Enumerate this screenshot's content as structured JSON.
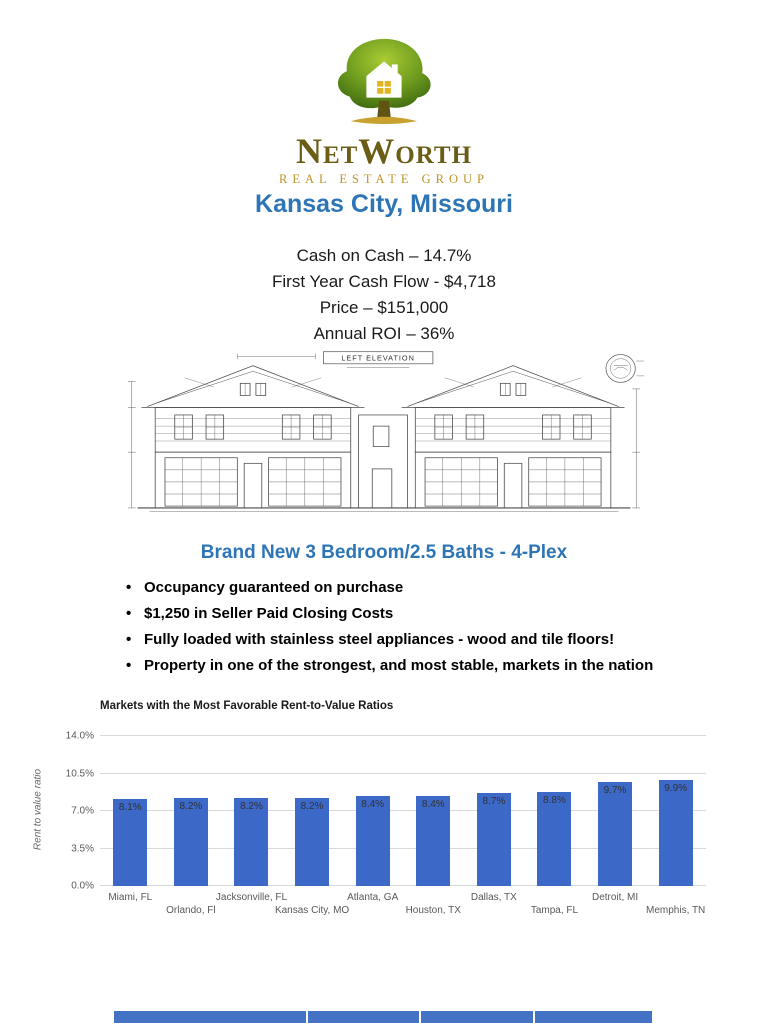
{
  "logo": {
    "brand": "NetWorth",
    "subtitle": "REAL ESTATE GROUP"
  },
  "title": "Kansas City, Missouri",
  "stats": [
    "Cash on Cash – 14.7%",
    "First Year Cash Flow - $4,718",
    "Price – $151,000",
    "Annual ROI – 36%"
  ],
  "drawing": {
    "label": "LEFT  ELEVATION"
  },
  "subheading": "Brand New 3 Bedroom/2.5 Baths - 4-Plex",
  "bullets": [
    "Occupancy guaranteed on purchase",
    "$1,250 in Seller Paid Closing Costs",
    "Fully loaded with stainless steel appliances - wood and tile floors!",
    "Property in one of the strongest, and most stable, markets in the nation"
  ],
  "colors": {
    "accent_blue": "#2e75b6",
    "table_blue": "#4472c4",
    "logo_gold": "#bc9427",
    "bar_blue": "#3c68c8"
  },
  "chart_data": {
    "type": "bar",
    "title": "Markets with the Most Favorable Rent-to-Value Ratios",
    "xlabel": "",
    "ylabel": "Rent to value ratio",
    "ylim": [
      0,
      14
    ],
    "yticks": [
      "0.0%",
      "3.5%",
      "7.0%",
      "10.5%",
      "14.0%"
    ],
    "categories": [
      "Miami, FL",
      "Orlando, Fl",
      "Jacksonville, FL",
      "Kansas City, MO",
      "Atlanta, GA",
      "Houston, TX",
      "Dallas, TX",
      "Tampa, FL",
      "Detroit, MI",
      "Memphis, TN"
    ],
    "values": [
      8.1,
      8.2,
      8.2,
      8.2,
      8.4,
      8.4,
      8.7,
      8.8,
      9.7,
      9.9
    ],
    "value_labels": [
      "8.1%",
      "8.2%",
      "8.2%",
      "8.2%",
      "8.4%",
      "8.4%",
      "8.7%",
      "8.8%",
      "9.7%",
      "9.9%"
    ],
    "bar_color": "#3c68c8",
    "grid": true,
    "legend": false
  }
}
